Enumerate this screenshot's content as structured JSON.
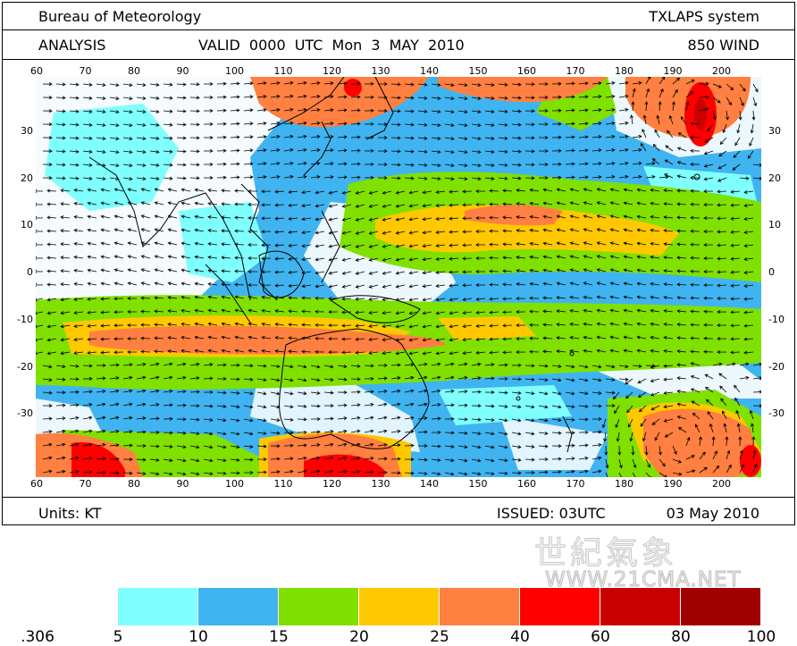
{
  "header": {
    "org": "Bureau of Meteorology",
    "system": "TXLAPS system",
    "type": "ANALYSIS",
    "valid": "VALID 0000 UTC Mon 3 MAY 2010",
    "field": "850 WIND"
  },
  "footer": {
    "units": "Units: KT",
    "issued": "ISSUED: 03UTC",
    "date": "03 May 2010"
  },
  "axes": {
    "lon_top": [
      "60",
      "70",
      "80",
      "90",
      "100",
      "110",
      "120",
      "130",
      "140",
      "150",
      "160",
      "170",
      "180",
      "190",
      "200"
    ],
    "lon_bottom": [
      "60",
      "70",
      "80",
      "90",
      "100",
      "110",
      "120",
      "130",
      "140",
      "150",
      "160",
      "170",
      "180",
      "190",
      "200"
    ],
    "lat_labels": [
      "30",
      "20",
      "10",
      "0",
      "-10",
      "-20",
      "-30"
    ]
  },
  "legend": {
    "labels": [
      ".306",
      "5",
      "10",
      "15",
      "20",
      "25",
      "40",
      "60",
      "80",
      "100"
    ],
    "colors": [
      "#ffffff",
      "#80ffff",
      "#40b4f0",
      "#80e000",
      "#ffc800",
      "#ff8040",
      "#ff0000",
      "#c80000",
      "#a00000",
      "#780000"
    ]
  },
  "watermark": {
    "cn": "世紀氣象",
    "url": "WWW.21CMA.NET"
  },
  "palette": {
    "coast": "#000000",
    "arrow": "#000000"
  }
}
